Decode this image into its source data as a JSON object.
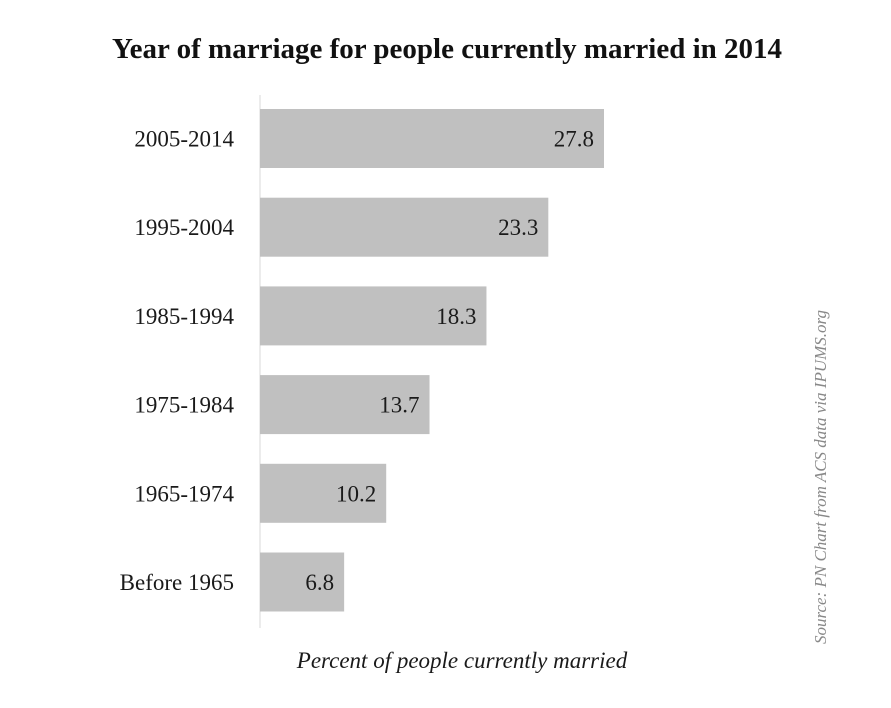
{
  "chart_data": {
    "type": "bar",
    "orientation": "horizontal",
    "title": "Year of marriage for people currently married in 2014",
    "xlabel": "Percent of people currently married",
    "ylabel": "",
    "categories": [
      "2005-2014",
      "1995-2004",
      "1985-1994",
      "1975-1984",
      "1965-1974",
      "Before 1965"
    ],
    "values": [
      27.8,
      23.3,
      18.3,
      13.7,
      10.2,
      6.8
    ],
    "xlim": [
      0,
      30
    ],
    "grid": false,
    "legend": "none",
    "data_labels": true,
    "source": "Source: PN Chart from ACS data via IPUMS.org",
    "colors": {
      "bar": "#c0c0c0",
      "text": "#1a1a1a",
      "axis": "#d9d9d9",
      "source": "#888888"
    }
  }
}
